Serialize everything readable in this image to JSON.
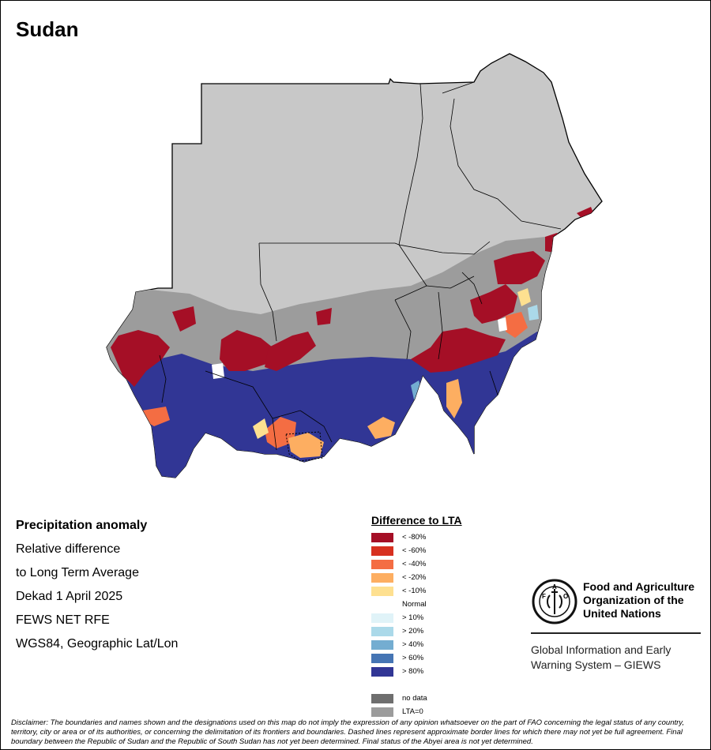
{
  "title": "Sudan",
  "info": {
    "line1": "Precipitation anomaly",
    "line2": "Relative difference",
    "line3": "to Long Term Average",
    "line4": "Dekad 1 April 2025",
    "line5": "FEWS NET RFE",
    "line6": "WGS84, Geographic Lat/Lon"
  },
  "legend": {
    "title": "Difference to LTA",
    "items": [
      {
        "label": "< -80%",
        "color": "#a50f26"
      },
      {
        "label": "< -60%",
        "color": "#d7301f"
      },
      {
        "label": "< -40%",
        "color": "#f46d43"
      },
      {
        "label": "< -20%",
        "color": "#fdae61"
      },
      {
        "label": "< -10%",
        "color": "#fee090"
      },
      {
        "label": "Normal",
        "color": "#ffffff"
      },
      {
        "label": "> 10%",
        "color": "#e0f3f8"
      },
      {
        "label": "> 20%",
        "color": "#abd9e9"
      },
      {
        "label": "> 40%",
        "color": "#74add1"
      },
      {
        "label": "> 60%",
        "color": "#4575b4"
      },
      {
        "label": "> 80%",
        "color": "#313695"
      },
      {
        "label": "",
        "color": "#ffffff"
      },
      {
        "label": "no data",
        "color": "#6e6e6e"
      },
      {
        "label": "LTA=0",
        "color": "#9c9c9c"
      }
    ]
  },
  "map_colors": {
    "desert": "#c8c8c8",
    "lta_zero": "#9c9c9c",
    "wet": "#313695",
    "dry": "#a50f26"
  },
  "fao": {
    "name_line1": "Food and Agriculture",
    "name_line2": "Organization of the",
    "name_line3": "United Nations",
    "giews_line1": "Global Information and Early",
    "giews_line2": "Warning System – GIEWS"
  },
  "disclaimer": "Disclaimer: The boundaries and names shown and the designations used on this map do not imply the expression of any opinion whatsoever on the part of FAO concerning the legal status of any country, territory, city or area or of its authorities, or concerning the delimitation of its frontiers and boundaries. Dashed lines represent approximate border lines for which there may not yet be full agreement. Final boundary between the Republic of Sudan and the Republic of South Sudan has not yet been determined. Final status of the Abyei area is not yet determined."
}
